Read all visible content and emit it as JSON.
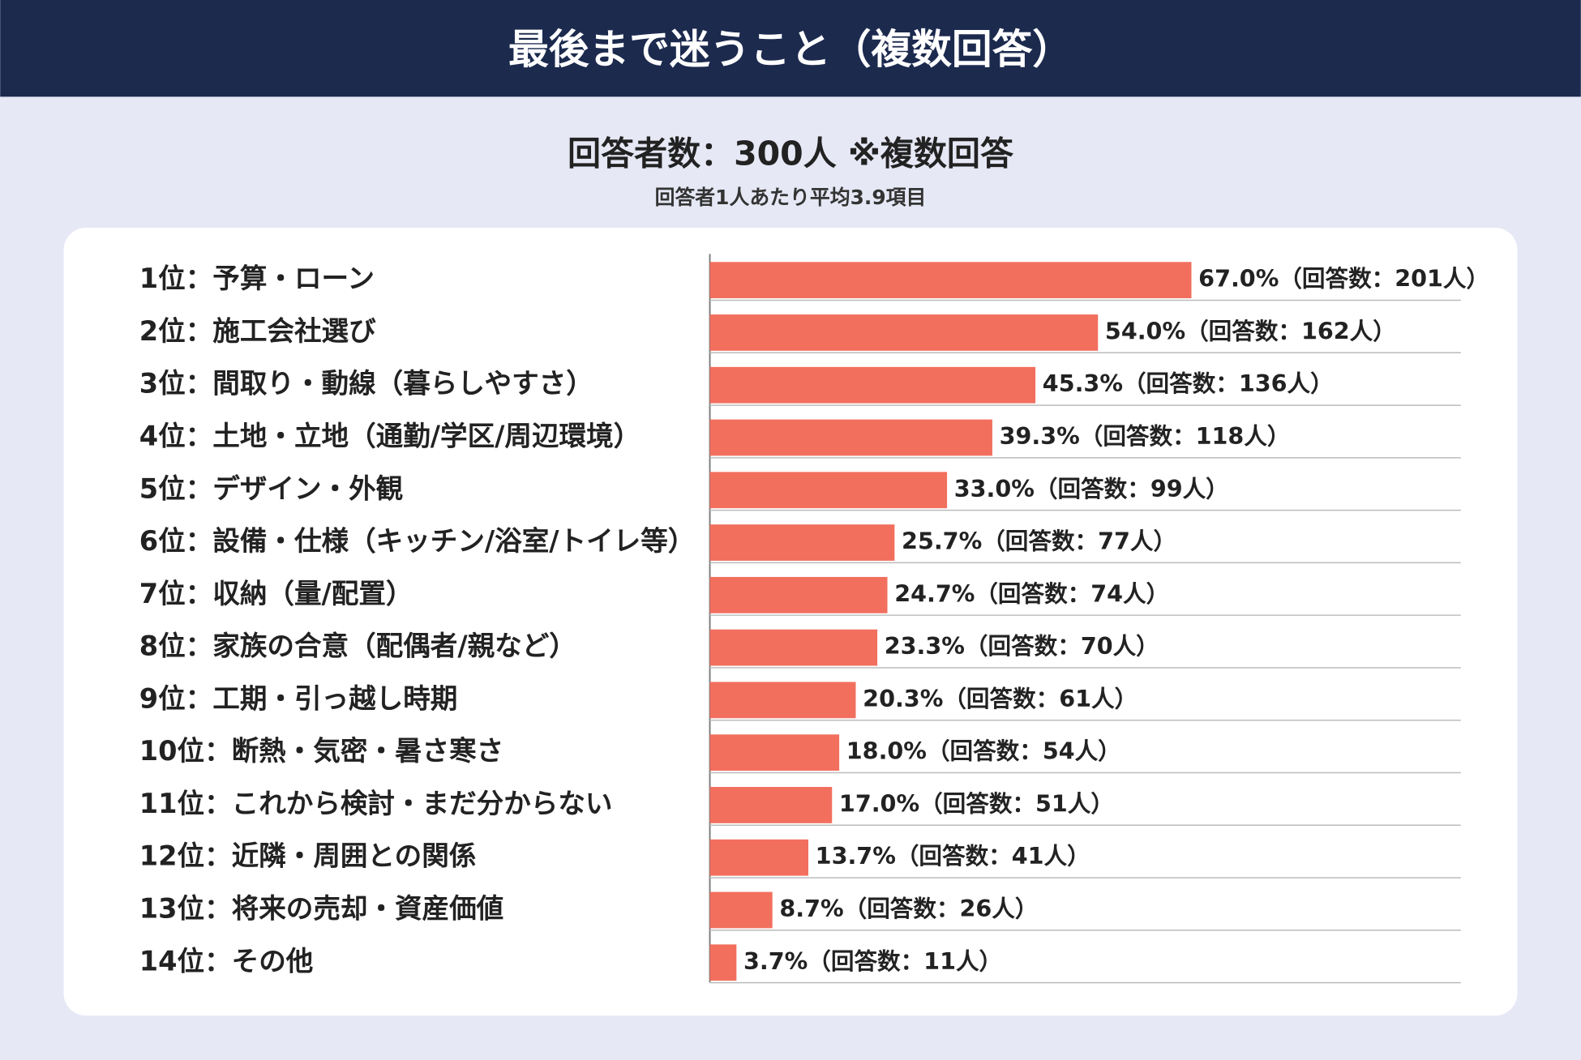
{
  "chart_data": {
    "type": "barh",
    "title": "最後まで迷うこと（複数回答）",
    "subtitle": "回答者数：300人 ※複数回答",
    "note": "回答者1人あたり平均3.9項目",
    "categories": [
      "1位：予算・ローン",
      "2位：施工会社選び",
      "3位：間取り・動線（暮らしやすさ）",
      "4位：土地・立地（通勤/学区/周辺環境）",
      "5位：デザイン・外観",
      "6位：設備・仕様（キッチン/浴室/トイレ等）",
      "7位：収納（量/配置）",
      "8位：家族の合意（配偶者/親など）",
      "9位：工期・引っ越し時期",
      "10位：断熱・気密・暑さ寒さ",
      "11位：これから検討・まだ分からない",
      "12位：近隣・周囲との関係",
      "13位：将来の売却・資産価値",
      "14位：その他"
    ],
    "values": [
      67.0,
      54.0,
      45.3,
      39.3,
      33.0,
      25.7,
      24.7,
      23.3,
      20.3,
      18.0,
      17.0,
      13.7,
      8.7,
      3.7
    ],
    "value_labels": [
      "67.0%（回答数：201人）",
      "54.0%（回答数：162人）",
      "45.3%（回答数：136人）",
      "39.3%（回答数：118人）",
      "33.0%（回答数：99人）",
      "25.7%（回答数：77人）",
      "24.7%（回答数：74人）",
      "23.3%（回答数：70人）",
      "20.3%（回答数：61人）",
      "18.0%（回答数：54人）",
      "17.0%（回答数：51人）",
      "13.7%（回答数：41人）",
      "8.7%（回答数：26人）",
      "3.7%（回答数：11人）"
    ],
    "color": "#f26f5e",
    "xlim": [
      0,
      100
    ]
  }
}
